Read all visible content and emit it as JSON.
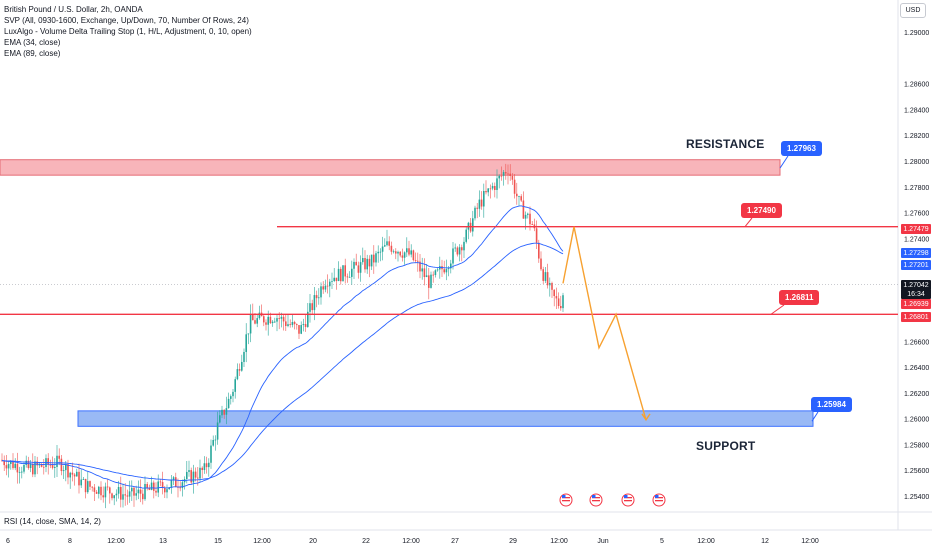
{
  "legend": {
    "symbol_line": "British Pound / U.S. Dollar, 2h, OANDA",
    "indicators": [
      "SVP (All, 0930-1600, Exchange, Up/Down, 70, Number Of Rows, 24)",
      "LuxAlgo - Volume Delta Trailing Stop (1, H/L, Adjustment, 0, 10, open)",
      "EMA (34, close)",
      "EMA (89, close)"
    ]
  },
  "currency_button": "USD",
  "rsi_label": "RSI (14, close, SMA, 14, 2)",
  "annotations": {
    "resistance": "RESISTANCE",
    "support": "SUPPORT"
  },
  "callouts": [
    {
      "text": "1.27963",
      "color": "#2962ff"
    },
    {
      "text": "1.27490",
      "color": "#f23645"
    },
    {
      "text": "1.26811",
      "color": "#f23645"
    },
    {
      "text": "1.25984",
      "color": "#2962ff"
    }
  ],
  "axis_tags": [
    {
      "text": "1.27479",
      "color": "#f23645"
    },
    {
      "text": "1.27298",
      "color": "#2962ff"
    },
    {
      "text": "1.27201",
      "color": "#2962ff"
    },
    {
      "text": "1.27042",
      "color": "#131722"
    },
    {
      "text": "16:34",
      "color": "#131722"
    },
    {
      "text": "1.26939",
      "color": "#f23645"
    },
    {
      "text": "1.26801",
      "color": "#f23645"
    }
  ],
  "colors": {
    "bull": "#26a69a",
    "bear": "#ef5350",
    "resistance_zone": "#f7a9ae",
    "support_zone": "#8fb2f5",
    "ema": "#2962ff",
    "projection": "#f7a130",
    "level_line": "#f23645"
  },
  "chart_data": {
    "type": "candlestick",
    "title": "British Pound / U.S. Dollar, 2h, OANDA",
    "y_ticks": [
      "1.29000",
      "1.28600",
      "1.28400",
      "1.28200",
      "1.28000",
      "1.27800",
      "1.27600",
      "1.27400",
      "1.26600",
      "1.26400",
      "1.26200",
      "1.26000",
      "1.25800",
      "1.25600",
      "1.25400"
    ],
    "x_ticks": [
      "6",
      "8",
      "12:00",
      "13",
      "15",
      "12:00",
      "20",
      "22",
      "12:00",
      "27",
      "29",
      "12:00",
      "Jun",
      "5",
      "12:00",
      "12",
      "12:00"
    ],
    "ylim": [
      1.2532,
      1.2915
    ],
    "levels": {
      "resistance_zone": [
        1.2789,
        1.2801
      ],
      "support_zone": [
        1.2594,
        1.2606
      ],
      "line_upper": 1.2749,
      "line_lower": 1.2681
    },
    "projection_path": [
      {
        "x": "29 12:00",
        "y": 1.2705
      },
      {
        "x": "30",
        "y": 1.2749
      },
      {
        "x": "31",
        "y": 1.2655
      },
      {
        "x": "Jun",
        "y": 1.2681
      },
      {
        "x": "3",
        "y": 1.2599
      }
    ],
    "series": [
      {
        "name": "EMA (34, close)",
        "values": "approximate trail"
      },
      {
        "name": "EMA (89, close)",
        "values": "approximate trail"
      }
    ]
  }
}
